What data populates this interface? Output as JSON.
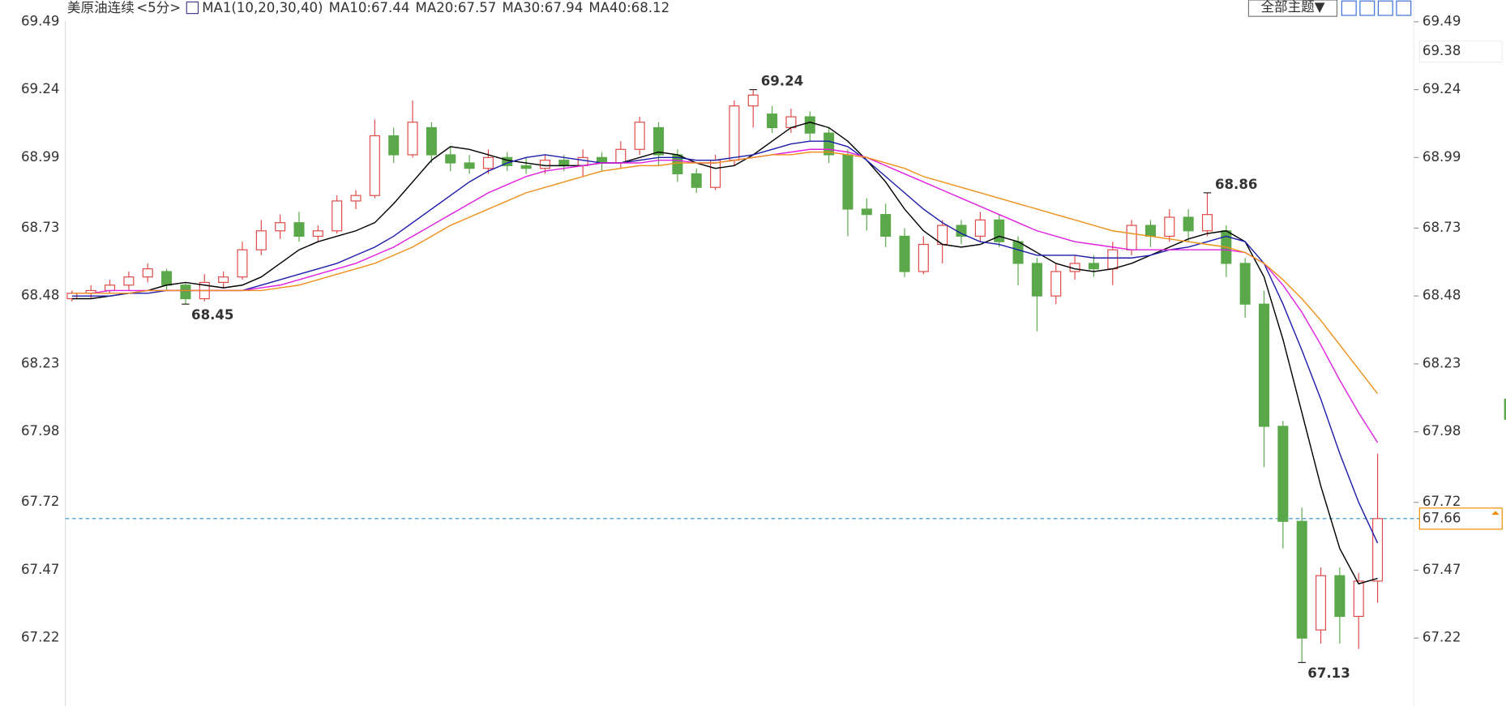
{
  "chart_data": {
    "type": "candlestick",
    "title": "美原油连续",
    "period": "<5分>",
    "indicator": "MA1(10,20,30,40)",
    "ylim": [
      66.97,
      69.57
    ],
    "yticks": [
      69.49,
      69.24,
      68.99,
      68.73,
      68.48,
      68.23,
      67.98,
      67.72,
      67.47,
      67.22
    ],
    "up_color": "#e04848",
    "down_color": "#5aa84a",
    "open": [
      68.47,
      68.49,
      68.5,
      68.52,
      68.55,
      68.57,
      68.52,
      68.47,
      68.53,
      68.55,
      68.65,
      68.72,
      68.75,
      68.7,
      68.72,
      68.83,
      68.85,
      69.07,
      69.0,
      69.1,
      69.0,
      68.97,
      68.95,
      68.99,
      68.96,
      68.95,
      68.98,
      68.96,
      68.99,
      68.97,
      69.02,
      69.1,
      69.0,
      68.93,
      68.88,
      68.98,
      69.18,
      69.15,
      69.1,
      69.14,
      69.08,
      69.0,
      68.8,
      68.78,
      68.7,
      68.57,
      68.67,
      68.74,
      68.7,
      68.76,
      68.68,
      68.6,
      68.48,
      68.57,
      68.6,
      68.58,
      68.65,
      68.74,
      68.7,
      68.77,
      68.72,
      68.72,
      68.6,
      68.45,
      68.0,
      67.65,
      67.25,
      67.45,
      67.3,
      67.43
    ],
    "high": [
      68.5,
      68.52,
      68.54,
      68.57,
      68.6,
      68.58,
      68.53,
      68.56,
      68.57,
      68.68,
      68.76,
      68.78,
      68.79,
      68.74,
      68.85,
      68.87,
      69.13,
      69.1,
      69.2,
      69.12,
      69.03,
      69.0,
      69.02,
      69.01,
      68.99,
      69.0,
      69.0,
      69.02,
      69.01,
      69.05,
      69.14,
      69.12,
      69.02,
      68.95,
      69.0,
      69.2,
      69.24,
      69.18,
      69.17,
      69.16,
      69.1,
      69.02,
      68.84,
      68.82,
      68.73,
      68.7,
      68.76,
      68.76,
      68.79,
      68.78,
      68.7,
      68.62,
      68.6,
      68.63,
      68.63,
      68.68,
      68.76,
      68.76,
      68.8,
      68.8,
      68.86,
      68.74,
      68.62,
      68.5,
      68.02,
      67.7,
      67.48,
      67.48,
      67.46,
      67.9
    ],
    "low": [
      68.46,
      68.47,
      68.49,
      68.5,
      68.53,
      68.5,
      68.45,
      68.46,
      68.51,
      68.54,
      68.63,
      68.69,
      68.68,
      68.68,
      68.71,
      68.8,
      68.84,
      68.97,
      68.99,
      68.97,
      68.94,
      68.93,
      68.93,
      68.94,
      68.93,
      68.93,
      68.94,
      68.92,
      68.94,
      68.95,
      69.0,
      68.96,
      68.9,
      68.86,
      68.87,
      68.96,
      69.1,
      69.08,
      69.08,
      69.05,
      68.97,
      68.7,
      68.72,
      68.66,
      68.55,
      68.56,
      68.6,
      68.67,
      68.68,
      68.66,
      68.52,
      68.35,
      68.45,
      68.54,
      68.55,
      68.52,
      68.63,
      68.66,
      68.68,
      68.68,
      68.7,
      68.55,
      68.4,
      67.85,
      67.55,
      67.13,
      67.2,
      67.2,
      67.18,
      67.35
    ],
    "close": [
      68.49,
      68.5,
      68.52,
      68.55,
      68.58,
      68.52,
      68.47,
      68.53,
      68.55,
      68.65,
      68.72,
      68.75,
      68.7,
      68.72,
      68.83,
      68.85,
      69.07,
      69.0,
      69.12,
      69.0,
      68.97,
      68.95,
      68.99,
      68.96,
      68.95,
      68.98,
      68.96,
      68.99,
      68.97,
      69.02,
      69.12,
      69.0,
      68.93,
      68.88,
      68.98,
      69.18,
      69.22,
      69.1,
      69.14,
      69.08,
      69.0,
      68.8,
      68.78,
      68.7,
      68.57,
      68.67,
      68.74,
      68.7,
      68.76,
      68.68,
      68.6,
      68.48,
      68.57,
      68.6,
      68.58,
      68.65,
      68.74,
      68.7,
      68.77,
      68.72,
      68.78,
      68.6,
      68.45,
      68.0,
      67.65,
      67.22,
      67.45,
      67.3,
      67.43,
      67.66
    ],
    "series": [
      {
        "name": "MA10:67.44",
        "color": "#000000",
        "values": [
          68.47,
          68.47,
          68.48,
          68.49,
          68.5,
          68.52,
          68.53,
          68.52,
          68.51,
          68.52,
          68.55,
          68.6,
          68.65,
          68.68,
          68.7,
          68.72,
          68.75,
          68.82,
          68.9,
          68.98,
          69.03,
          69.02,
          69.0,
          68.98,
          68.97,
          68.96,
          68.96,
          68.96,
          68.97,
          68.97,
          68.99,
          69.01,
          69.0,
          68.97,
          68.95,
          68.96,
          69.0,
          69.05,
          69.1,
          69.12,
          69.1,
          69.05,
          68.98,
          68.9,
          68.8,
          68.72,
          68.67,
          68.66,
          68.67,
          68.7,
          68.68,
          68.64,
          68.6,
          68.58,
          68.57,
          68.58,
          68.6,
          68.63,
          68.66,
          68.69,
          68.71,
          68.72,
          68.68,
          68.55,
          68.32,
          68.05,
          67.78,
          67.55,
          67.42,
          67.44
        ]
      },
      {
        "name": "MA20:67.57",
        "color": "#1c1caa",
        "values": [
          68.48,
          68.48,
          68.48,
          68.49,
          68.49,
          68.5,
          68.5,
          68.5,
          68.5,
          68.5,
          68.52,
          68.54,
          68.56,
          68.58,
          68.6,
          68.63,
          68.66,
          68.7,
          68.75,
          68.8,
          68.85,
          68.9,
          68.94,
          68.97,
          68.99,
          69.0,
          68.99,
          68.98,
          68.97,
          68.97,
          68.98,
          68.99,
          68.99,
          68.98,
          68.98,
          68.99,
          69.0,
          69.02,
          69.04,
          69.05,
          69.05,
          69.03,
          68.98,
          68.92,
          68.86,
          68.8,
          68.75,
          68.71,
          68.68,
          68.67,
          68.65,
          68.63,
          68.63,
          68.63,
          68.62,
          68.62,
          68.62,
          68.63,
          68.65,
          68.66,
          68.68,
          68.7,
          68.68,
          68.6,
          68.45,
          68.28,
          68.1,
          67.9,
          67.72,
          67.57
        ]
      },
      {
        "name": "MA30:67.94",
        "color": "#e020e0",
        "values": [
          68.49,
          68.49,
          68.5,
          68.5,
          68.5,
          68.5,
          68.5,
          68.5,
          68.5,
          68.5,
          68.51,
          68.52,
          68.54,
          68.56,
          68.58,
          68.6,
          68.63,
          68.66,
          68.7,
          68.74,
          68.78,
          68.82,
          68.86,
          68.89,
          68.92,
          68.94,
          68.95,
          68.96,
          68.97,
          68.97,
          68.97,
          68.98,
          68.98,
          68.97,
          68.97,
          68.98,
          68.99,
          69.0,
          69.01,
          69.02,
          69.02,
          69.01,
          68.99,
          68.96,
          68.93,
          68.9,
          68.87,
          68.84,
          68.81,
          68.78,
          68.75,
          68.72,
          68.7,
          68.68,
          68.67,
          68.66,
          68.65,
          68.65,
          68.65,
          68.65,
          68.65,
          68.65,
          68.64,
          68.6,
          68.52,
          68.42,
          68.3,
          68.17,
          68.05,
          67.94
        ]
      },
      {
        "name": "MA40:68.12",
        "color": "#f0901c",
        "values": [
          68.49,
          68.49,
          68.49,
          68.49,
          68.5,
          68.5,
          68.5,
          68.5,
          68.5,
          68.5,
          68.5,
          68.51,
          68.52,
          68.54,
          68.56,
          68.58,
          68.6,
          68.63,
          68.66,
          68.7,
          68.74,
          68.77,
          68.8,
          68.83,
          68.86,
          68.88,
          68.9,
          68.92,
          68.94,
          68.95,
          68.96,
          68.96,
          68.97,
          68.97,
          68.97,
          68.98,
          68.99,
          69.0,
          69.0,
          69.01,
          69.01,
          69.0,
          68.99,
          68.97,
          68.95,
          68.92,
          68.9,
          68.88,
          68.86,
          68.84,
          68.82,
          68.8,
          68.78,
          68.76,
          68.74,
          68.72,
          68.71,
          68.7,
          68.69,
          68.68,
          68.67,
          68.66,
          68.64,
          68.6,
          68.54,
          68.47,
          68.39,
          68.3,
          68.21,
          68.12
        ]
      }
    ],
    "annotations": [
      {
        "text": "69.24",
        "value": 69.24,
        "index": 36,
        "color": "#e04848"
      },
      {
        "text": "68.86",
        "value": 68.86,
        "index": 60,
        "color": "#e04848"
      },
      {
        "text": "68.45",
        "value": 68.45,
        "index": 6,
        "color": "#5aa84a"
      },
      {
        "text": "67.13",
        "value": 67.13,
        "index": 65,
        "color": "#5aa84a"
      }
    ],
    "price_line": 67.66,
    "right_marker": 69.38,
    "toolbar": {
      "theme_button": "全部主题▼"
    }
  }
}
